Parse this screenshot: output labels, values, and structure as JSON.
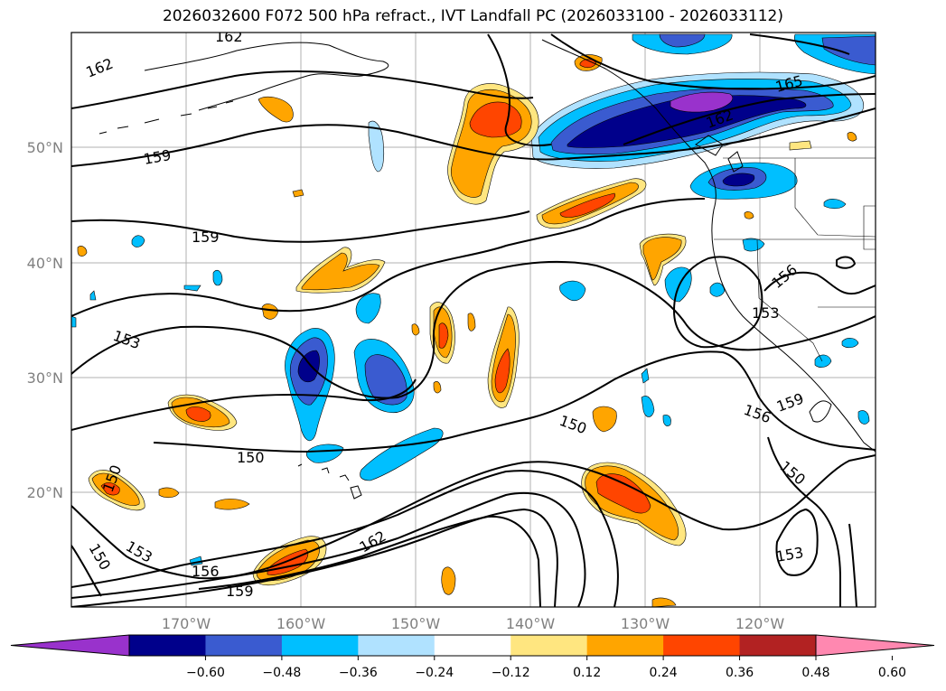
{
  "title": "2026032600 F072 500 hPa refract., IVT Landfall PC (2026033100 - 2026033112)",
  "lon_ticks": [
    "170°W",
    "160°W",
    "150°W",
    "140°W",
    "130°W",
    "120°W"
  ],
  "lat_ticks": [
    "50°N",
    "40°N",
    "30°N",
    "20°N"
  ],
  "colorbar": {
    "colors": [
      "#9932cc",
      "#00008b",
      "#3a5bd0",
      "#00bfff",
      "#b0e2ff",
      "#ffffff",
      "#ffe680",
      "#ffa500",
      "#ff4500",
      "#b22222",
      "#ff88b0"
    ],
    "tick_labels": [
      "−0.60",
      "−0.48",
      "−0.36",
      "−0.24",
      "−0.12",
      "0.12",
      "0.24",
      "0.36",
      "0.48",
      "0.60"
    ]
  },
  "contour_labels": [
    "162",
    "162",
    "159",
    "159",
    "153",
    "150",
    "150",
    "150",
    "153",
    "156",
    "159",
    "162",
    "150",
    "156",
    "159",
    "150",
    "153",
    "165",
    "162",
    "156",
    "153"
  ]
}
